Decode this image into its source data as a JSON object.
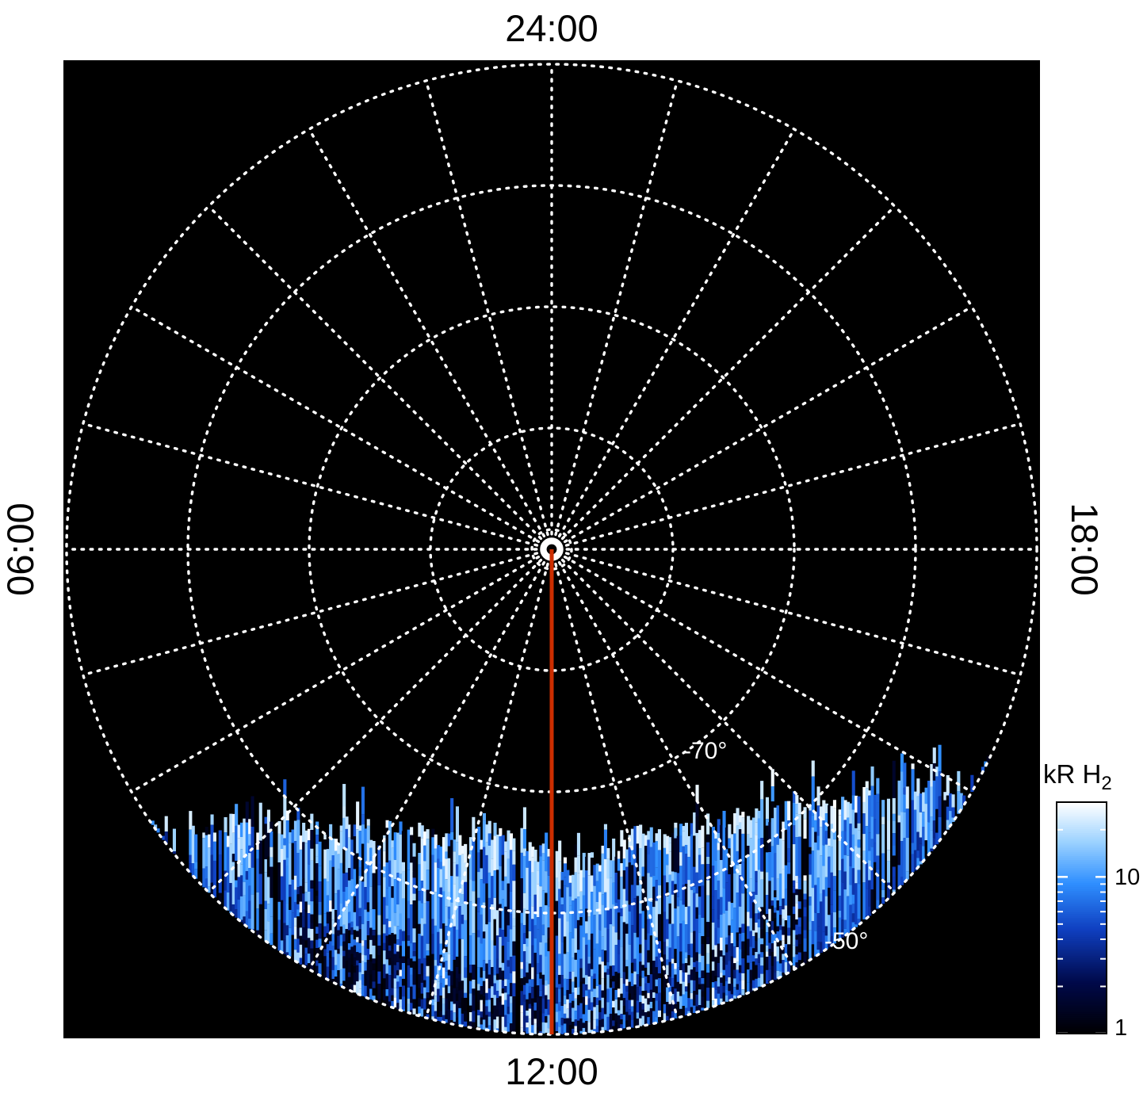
{
  "figure": {
    "kind": "polar local-time map of southern-hemisphere H2 emission",
    "background": "#ffffff",
    "plot_background": "#000000"
  },
  "plot": {
    "grid_color": "#ffffff",
    "noon_line_color": "#cc2e00",
    "time_labels": {
      "top": "24:00",
      "bottom": "12:00",
      "left": "06:00",
      "right": "18:00"
    },
    "lat_labels": [
      {
        "text": "-70°",
        "lat": -70
      },
      {
        "text": "-50°",
        "lat": -50
      }
    ]
  },
  "colorbar": {
    "title_text": "kR H",
    "title_sub": "2",
    "ticks": [
      {
        "label": "10",
        "value": 10
      },
      {
        "label": "1",
        "value": 1
      }
    ],
    "scale": "log"
  },
  "chart_data": {
    "type": "heatmap",
    "projection": "polar-southern",
    "angular_axis": {
      "quantity": "local time",
      "labels": [
        "24:00",
        "06:00",
        "12:00",
        "18:00"
      ],
      "label_positions": [
        "top",
        "left",
        "bottom",
        "right"
      ],
      "spoke_interval_hours": 1,
      "noon_at": "bottom"
    },
    "radial_axis": {
      "quantity": "latitude (deg)",
      "pole": -90,
      "edge": -50,
      "gridline_latitudes": [
        -80,
        -70,
        -60,
        -50
      ],
      "labeled_latitudes": [
        -70,
        -50
      ]
    },
    "colorbar": {
      "units": "kR H2",
      "scale": "log",
      "min": 1,
      "max": 30,
      "major_ticks": [
        10,
        1
      ],
      "minor_ticks": [
        2,
        3,
        4,
        5,
        6,
        7,
        8,
        9,
        20
      ]
    },
    "colormap": [
      {
        "t": 0.0,
        "c": "#000003"
      },
      {
        "t": 0.22,
        "c": "#00094a"
      },
      {
        "t": 0.45,
        "c": "#0f3fc0"
      },
      {
        "t": 0.65,
        "c": "#2f8fff"
      },
      {
        "t": 0.83,
        "c": "#9cd2ff"
      },
      {
        "t": 1.0,
        "c": "#ffffff"
      }
    ],
    "emission": {
      "description": "Streaky columnar H2 dayglow filling the sunlit sector of the southern polar cap: present from about 08:00 to 16:20 local time between the -50° outer edge and about -68° latitude (deepest toward noon); intensities span ~1-30 kR with bright white streaks along the poleward edge, scattered dark column gaps, a dark mottled checkered band hugging the sub-noon limb, and a black notch just below the pole-to-noon line near -72°; a red-orange line marks the noon (12:00) meridian from the pole to the outer edge",
      "local_time_range": [
        8.2,
        16.3
      ],
      "latitude_range": [
        -50,
        -68
      ],
      "intensity_range_kR": [
        1,
        30
      ],
      "noon_meridian_marked": true
    },
    "seed": 1337
  }
}
